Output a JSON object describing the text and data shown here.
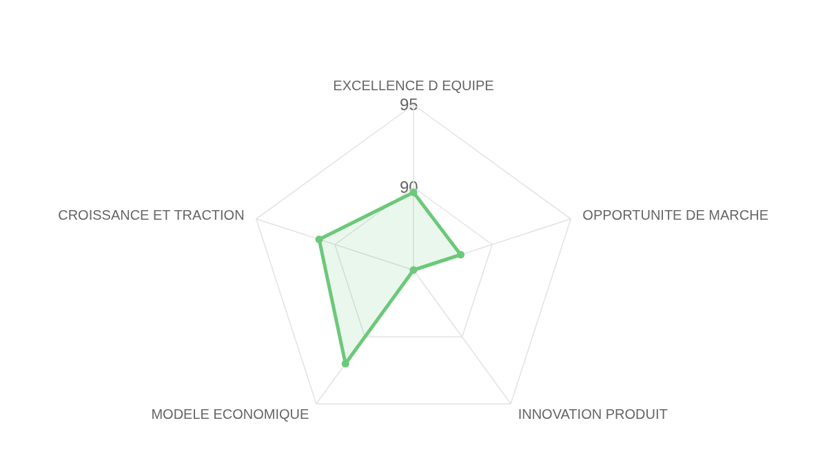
{
  "chart_data": {
    "type": "radar",
    "categories": [
      "EXCELLENCE D EQUIPE",
      "OPPORTUNITE DE MARCHE",
      "INNOVATION PRODUIT",
      "MODELE ECONOMIQUE",
      "CROISSANCE ET TRACTION"
    ],
    "series": [
      {
        "color": "#6cc97a",
        "values": [
          89.7,
          88,
          85,
          92,
          91
        ]
      }
    ],
    "ylim": [
      85,
      95
    ],
    "yticks": [
      90,
      95
    ],
    "grid": true,
    "marker": "circle",
    "line_style": "solid"
  }
}
